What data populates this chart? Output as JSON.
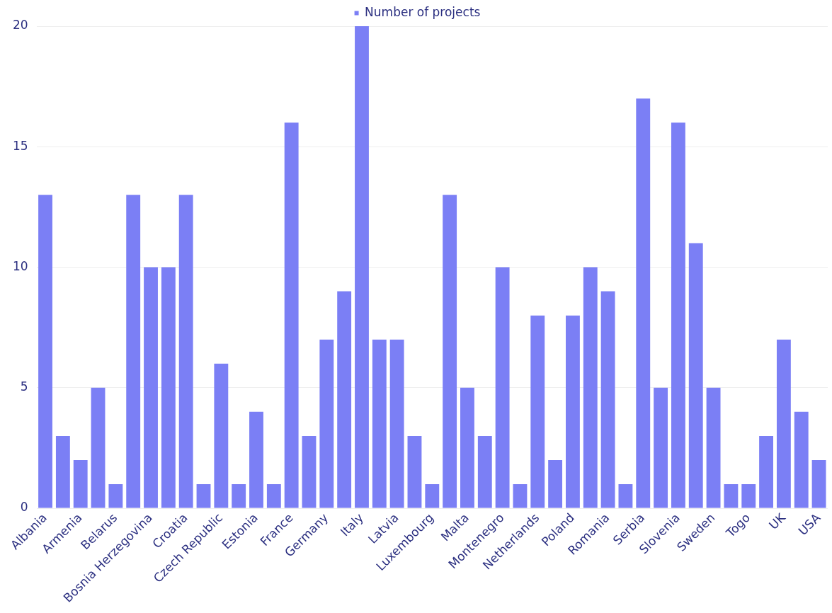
{
  "chart_data": {
    "type": "bar",
    "categories": [
      "Albania",
      null,
      "Armenia",
      null,
      "Belarus",
      null,
      "Bosnia Herzegovina",
      null,
      "Croatia",
      null,
      "Czech Republic",
      null,
      "Estonia",
      null,
      "France",
      null,
      "Germany",
      null,
      "Italy",
      null,
      "Latvia",
      null,
      "Luxembourg",
      null,
      "Malta",
      null,
      "Montenegro",
      null,
      "Netherlands",
      null,
      "Poland",
      null,
      "Romania",
      null,
      "Serbia",
      null,
      "Slovenia",
      null,
      "Sweden",
      null,
      "Togo",
      null,
      "UK",
      null,
      "USA"
    ],
    "series": [
      {
        "name": "Number of projects",
        "color": "#7b7ff5",
        "values": [
          13,
          3,
          2,
          5,
          1,
          13,
          10,
          10,
          13,
          1,
          6,
          1,
          4,
          1,
          16,
          3,
          7,
          9,
          20,
          7,
          7,
          3,
          1,
          13,
          5,
          3,
          10,
          1,
          8,
          2,
          8,
          10,
          9,
          1,
          17,
          5,
          16,
          11,
          5,
          1,
          1,
          3,
          7,
          4,
          2
        ]
      }
    ],
    "ylim": [
      0,
      20
    ],
    "yticks": [
      0,
      5,
      10,
      15,
      20
    ],
    "grid": "y",
    "legend": "top"
  }
}
